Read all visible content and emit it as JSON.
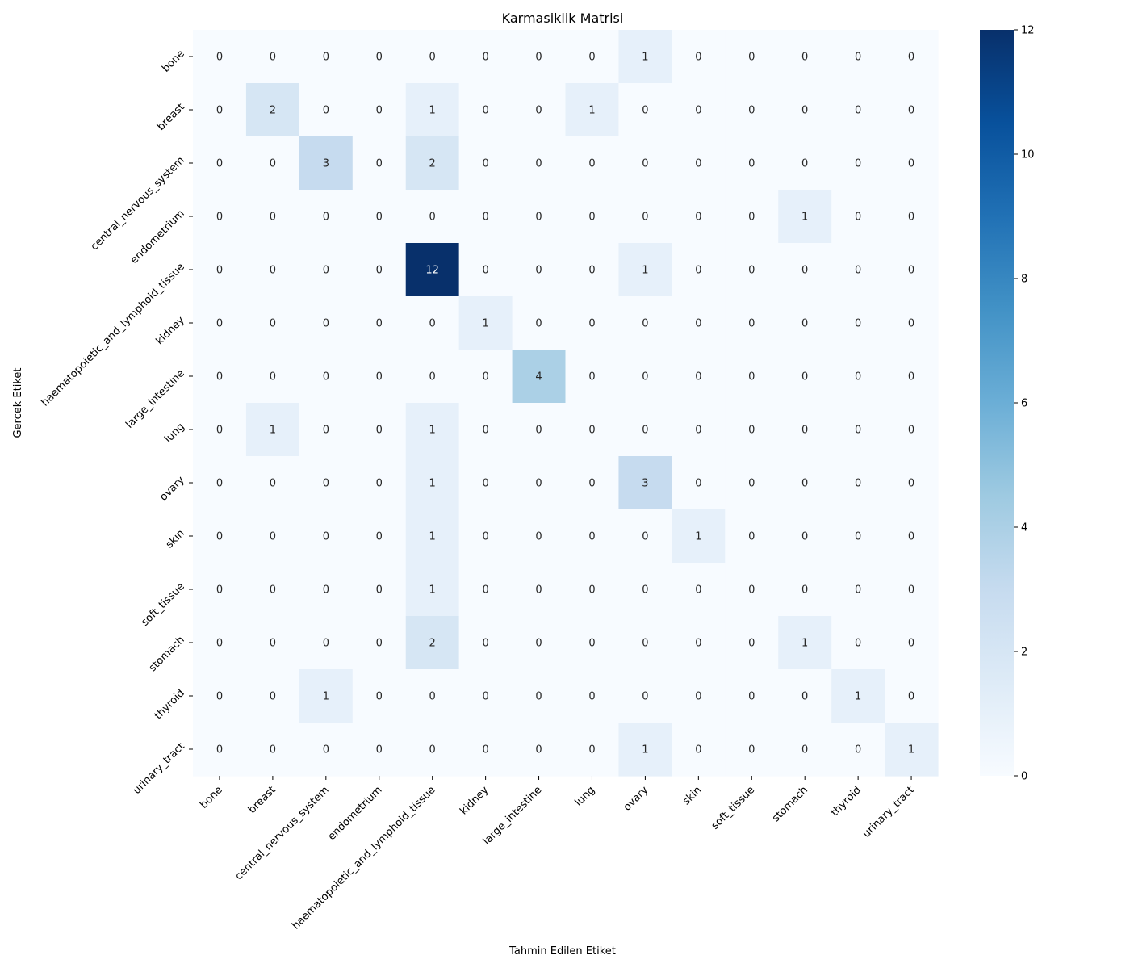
{
  "chart_data": {
    "type": "heatmap",
    "title": "Karmasiklik Matrisi",
    "xlabel": "Tahmin Edilen Etiket",
    "ylabel": "Gercek Etiket",
    "x_categories": [
      "bone",
      "breast",
      "central_nervous_system",
      "endometrium",
      "haematopoietic_and_lymphoid_tissue",
      "kidney",
      "large_intestine",
      "lung",
      "ovary",
      "skin",
      "soft_tissue",
      "stomach",
      "thyroid",
      "urinary_tract"
    ],
    "y_categories": [
      "bone",
      "breast",
      "central_nervous_system",
      "endometrium",
      "haematopoietic_and_lymphoid_tissue",
      "kidney",
      "large_intestine",
      "lung",
      "ovary",
      "skin",
      "soft_tissue",
      "stomach",
      "thyroid",
      "urinary_tract"
    ],
    "values": [
      [
        0,
        0,
        0,
        0,
        0,
        0,
        0,
        0,
        1,
        0,
        0,
        0,
        0,
        0
      ],
      [
        0,
        2,
        0,
        0,
        1,
        0,
        0,
        1,
        0,
        0,
        0,
        0,
        0,
        0
      ],
      [
        0,
        0,
        3,
        0,
        2,
        0,
        0,
        0,
        0,
        0,
        0,
        0,
        0,
        0
      ],
      [
        0,
        0,
        0,
        0,
        0,
        0,
        0,
        0,
        0,
        0,
        0,
        1,
        0,
        0
      ],
      [
        0,
        0,
        0,
        0,
        12,
        0,
        0,
        0,
        1,
        0,
        0,
        0,
        0,
        0
      ],
      [
        0,
        0,
        0,
        0,
        0,
        1,
        0,
        0,
        0,
        0,
        0,
        0,
        0,
        0
      ],
      [
        0,
        0,
        0,
        0,
        0,
        0,
        4,
        0,
        0,
        0,
        0,
        0,
        0,
        0
      ],
      [
        0,
        1,
        0,
        0,
        1,
        0,
        0,
        0,
        0,
        0,
        0,
        0,
        0,
        0
      ],
      [
        0,
        0,
        0,
        0,
        1,
        0,
        0,
        0,
        3,
        0,
        0,
        0,
        0,
        0
      ],
      [
        0,
        0,
        0,
        0,
        1,
        0,
        0,
        0,
        0,
        1,
        0,
        0,
        0,
        0
      ],
      [
        0,
        0,
        0,
        0,
        1,
        0,
        0,
        0,
        0,
        0,
        0,
        0,
        0,
        0
      ],
      [
        0,
        0,
        0,
        0,
        2,
        0,
        0,
        0,
        0,
        0,
        0,
        1,
        0,
        0
      ],
      [
        0,
        0,
        1,
        0,
        0,
        0,
        0,
        0,
        0,
        0,
        0,
        0,
        1,
        0
      ],
      [
        0,
        0,
        0,
        0,
        0,
        0,
        0,
        0,
        1,
        0,
        0,
        0,
        0,
        1
      ]
    ],
    "colorbar": {
      "min": 0,
      "max": 12,
      "ticks": [
        0,
        2,
        4,
        6,
        8,
        10,
        12
      ],
      "colormap": "Blues"
    },
    "colors": {
      "low": "#f7fbff",
      "high": "#08306b",
      "text_dark": "#262626",
      "text_light": "#ffffff"
    }
  }
}
